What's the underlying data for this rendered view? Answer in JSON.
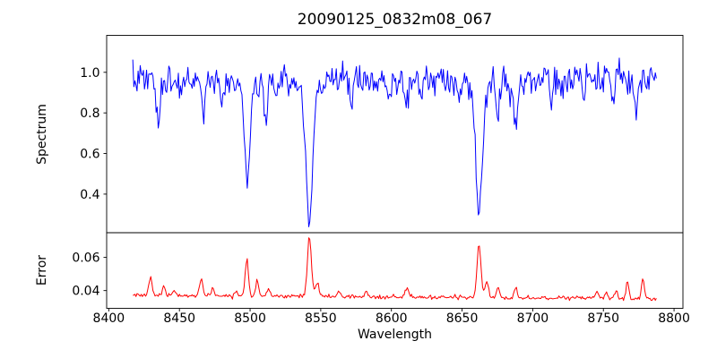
{
  "figure": {
    "background": "#ffffff",
    "spine_color": "#000000",
    "tick_color": "#000000",
    "text_color": "#000000"
  },
  "chart_data": {
    "type": "line",
    "title": "20090125_0832m08_067",
    "xlabel": "Wavelength",
    "grid": false,
    "legend": "none",
    "xlim": [
      8398.5,
      8806.3
    ],
    "x_data_range": [
      8417,
      8787.5
    ],
    "sample_step": 0.75,
    "noise_seed": 7,
    "x_ticks": [
      8400,
      8450,
      8500,
      8550,
      8600,
      8650,
      8700,
      8750,
      8800
    ],
    "x_tick_labels": [
      "8400",
      "8450",
      "8500",
      "8550",
      "8600",
      "8650",
      "8700",
      "8750",
      "8800"
    ],
    "panels": [
      {
        "name": "spectrum",
        "ylabel": "Spectrum",
        "color": "#0000ff",
        "ylim": [
          0.21,
          1.182
        ],
        "y_ticks": [
          0.4,
          0.6,
          0.8,
          1.0
        ],
        "y_tick_labels": [
          "0.4",
          "0.6",
          "0.8",
          "1.0"
        ],
        "continuum": 0.963,
        "noise_sigma": 0.036,
        "absorption_lines": [
          {
            "center": 8435,
            "depth": 0.275,
            "sigma": 1.3
          },
          {
            "center": 8451,
            "depth": 0.07,
            "sigma": 1.0
          },
          {
            "center": 8467,
            "depth": 0.16,
            "sigma": 1.2
          },
          {
            "center": 8480,
            "depth": 0.08,
            "sigma": 1.0
          },
          {
            "center": 8498,
            "depth": 0.535,
            "sigma": 1.9
          },
          {
            "center": 8511,
            "depth": 0.16,
            "sigma": 1.2
          },
          {
            "center": 8518,
            "depth": 0.09,
            "sigma": 1.0
          },
          {
            "center": 8542,
            "depth": 0.66,
            "sigma": 2.2
          },
          {
            "center": 8542,
            "depth": 0.08,
            "sigma": 6.0
          },
          {
            "center": 8572,
            "depth": 0.11,
            "sigma": 1.2
          },
          {
            "center": 8598,
            "depth": 0.08,
            "sigma": 1.1
          },
          {
            "center": 8611,
            "depth": 0.13,
            "sigma": 1.4
          },
          {
            "center": 8621,
            "depth": 0.09,
            "sigma": 1.1
          },
          {
            "center": 8648,
            "depth": 0.1,
            "sigma": 1.1
          },
          {
            "center": 8662,
            "depth": 0.62,
            "sigma": 2.2
          },
          {
            "center": 8662,
            "depth": 0.07,
            "sigma": 6.0
          },
          {
            "center": 8675,
            "depth": 0.21,
            "sigma": 1.2
          },
          {
            "center": 8688,
            "depth": 0.23,
            "sigma": 1.4
          },
          {
            "center": 8713,
            "depth": 0.11,
            "sigma": 1.2
          },
          {
            "center": 8736,
            "depth": 0.08,
            "sigma": 1.1
          },
          {
            "center": 8757,
            "depth": 0.14,
            "sigma": 1.2
          },
          {
            "center": 8773,
            "depth": 0.17,
            "sigma": 1.4
          }
        ]
      },
      {
        "name": "error",
        "ylabel": "Error",
        "color": "#ff0000",
        "ylim": [
          0.0293,
          0.0749
        ],
        "y_ticks": [
          0.04,
          0.06
        ],
        "y_tick_labels": [
          "0.04",
          "0.06"
        ],
        "baseline_start": 0.0372,
        "baseline_slope": -5.5e-06,
        "noise_sigma": 0.00065,
        "peaks": [
          {
            "center": 8429.5,
            "amp": 0.0115,
            "sigma": 1.1
          },
          {
            "center": 8439,
            "amp": 0.0055,
            "sigma": 1.0
          },
          {
            "center": 8446,
            "amp": 0.003,
            "sigma": 1.0
          },
          {
            "center": 8465.5,
            "amp": 0.0115,
            "sigma": 1.1
          },
          {
            "center": 8474,
            "amp": 0.0045,
            "sigma": 1.0
          },
          {
            "center": 8490,
            "amp": 0.0035,
            "sigma": 0.9
          },
          {
            "center": 8497.7,
            "amp": 0.021,
            "sigma": 1.2
          },
          {
            "center": 8505,
            "amp": 0.0095,
            "sigma": 1.0
          },
          {
            "center": 8513,
            "amp": 0.0045,
            "sigma": 1.0
          },
          {
            "center": 8542,
            "amp": 0.036,
            "sigma": 1.4
          },
          {
            "center": 8547.5,
            "amp": 0.007,
            "sigma": 1.3
          },
          {
            "center": 8563,
            "amp": 0.0035,
            "sigma": 1.1
          },
          {
            "center": 8582,
            "amp": 0.003,
            "sigma": 1.0
          },
          {
            "center": 8611,
            "amp": 0.0055,
            "sigma": 1.1
          },
          {
            "center": 8662,
            "amp": 0.0315,
            "sigma": 1.4
          },
          {
            "center": 8667.5,
            "amp": 0.01,
            "sigma": 1.2
          },
          {
            "center": 8675.5,
            "amp": 0.0055,
            "sigma": 1.0
          },
          {
            "center": 8688,
            "amp": 0.0055,
            "sigma": 1.1
          },
          {
            "center": 8745,
            "amp": 0.004,
            "sigma": 1.0
          },
          {
            "center": 8752,
            "amp": 0.004,
            "sigma": 1.0
          },
          {
            "center": 8759,
            "amp": 0.0045,
            "sigma": 1.0
          },
          {
            "center": 8767,
            "amp": 0.011,
            "sigma": 0.9
          },
          {
            "center": 8778,
            "amp": 0.0125,
            "sigma": 0.9
          }
        ]
      }
    ]
  }
}
